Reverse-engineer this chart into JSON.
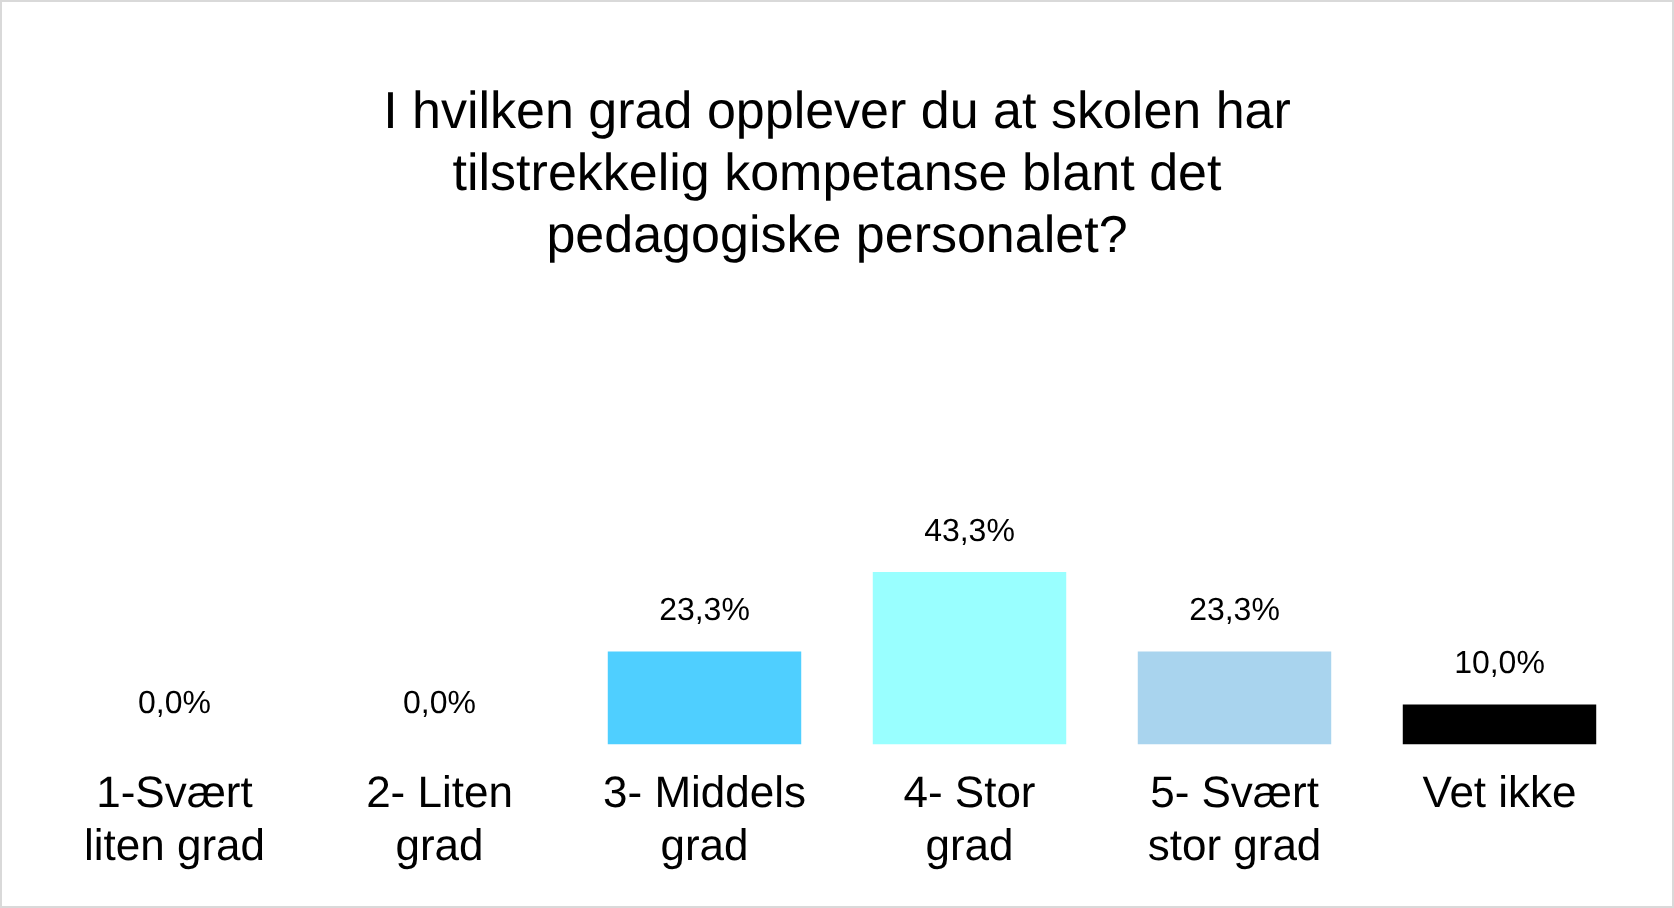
{
  "chart_data": {
    "type": "bar",
    "title": "I hvilken grad opplever du at skolen har tilstrekkelig kompetanse blant det pedagogiske personalet?",
    "categories": [
      "1-Svært liten grad",
      "2- Liten grad",
      "3- Middels grad",
      "4- Stor grad",
      "5- Svært stor grad",
      "Vet ikke"
    ],
    "values": [
      0,
      0,
      23.3,
      43.3,
      23.3,
      10.0
    ],
    "colors": [
      "#5b9bd5",
      "#5b9bd5",
      "#4fcfff",
      "#99ffff",
      "#a9d4ee",
      "#000000"
    ],
    "value_labels": [
      "0,0%",
      "0,0%",
      "23,3%",
      "43,3%",
      "23,3%",
      "10,0%"
    ],
    "grid": false,
    "legend": false
  }
}
